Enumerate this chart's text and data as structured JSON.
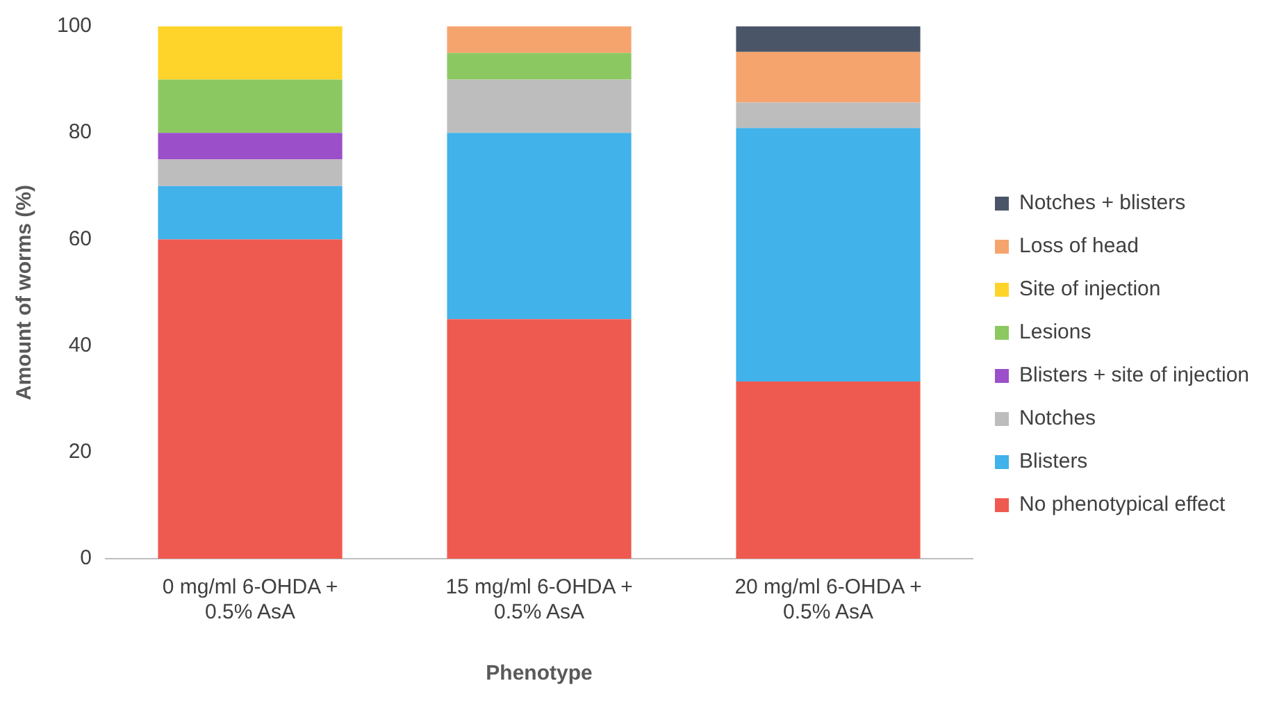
{
  "chart_data": {
    "type": "bar",
    "stacked": true,
    "xlabel": "Phenotype",
    "ylabel": "Amount of worms (%)",
    "categories": [
      "0 mg/ml 6-OHDA + 0.5% AsA",
      "15 mg/ml 6-OHDA + 0.5% AsA",
      "20 mg/ml 6-OHDA + 0.5% AsA"
    ],
    "series": [
      {
        "name": "No phenotypical effect",
        "color": "#ef5a50",
        "values": [
          60,
          45,
          33.3
        ]
      },
      {
        "name": "Blisters",
        "color": "#41b2ea",
        "values": [
          10,
          35,
          47.6
        ]
      },
      {
        "name": "Notches",
        "color": "#bdbdbd",
        "values": [
          5,
          10,
          4.8
        ]
      },
      {
        "name": "Blisters + site of injection",
        "color": "#9b4fc8",
        "values": [
          5,
          0,
          0
        ]
      },
      {
        "name": "Lesions",
        "color": "#8cc862",
        "values": [
          10,
          5,
          0
        ]
      },
      {
        "name": "Site of injection",
        "color": "#ffd42a",
        "values": [
          10,
          0,
          0
        ]
      },
      {
        "name": "Loss of head",
        "color": "#f5a46e",
        "values": [
          0,
          5,
          9.5
        ]
      },
      {
        "name": "Notches + blisters",
        "color": "#4a5668",
        "values": [
          0,
          0,
          4.8
        ]
      }
    ],
    "ylim": [
      0,
      100
    ],
    "yticks": [
      0,
      20,
      40,
      60,
      80,
      100
    ],
    "grid": false,
    "legend": "right"
  }
}
